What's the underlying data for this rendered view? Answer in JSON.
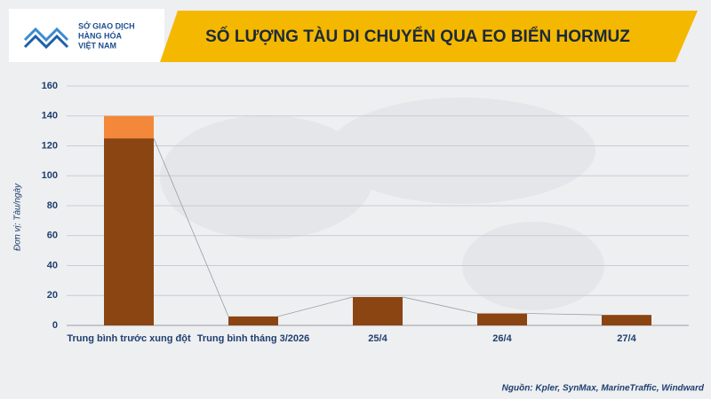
{
  "logo": [
    "SỞ GIAO DỊCH",
    "HÀNG HÓA",
    "VIỆT NAM"
  ],
  "chart_data": {
    "type": "bar",
    "stacked": true,
    "title": "SỐ LƯỢNG TÀU DI CHUYỂN QUA EO BIỂN HORMUZ",
    "y_label": "Đơn vị: Tàu/ngày",
    "source": "Nguồn: Kpler, SynMax, MarineTraffic, Windward",
    "categories": [
      "Trung bình trước xung đột",
      "Trung bình tháng 3/2026",
      "25/4",
      "26/4",
      "27/4"
    ],
    "series": [
      {
        "color": "#8B4513",
        "values": [
          125,
          6,
          19,
          8,
          7
        ]
      },
      {
        "color": "#F4883A",
        "values": [
          15,
          null,
          null,
          null,
          null
        ]
      }
    ],
    "ylim": [
      0,
      160
    ],
    "yticks": [
      0,
      20,
      40,
      60,
      80,
      100,
      120,
      140,
      160
    ],
    "grid": true
  }
}
